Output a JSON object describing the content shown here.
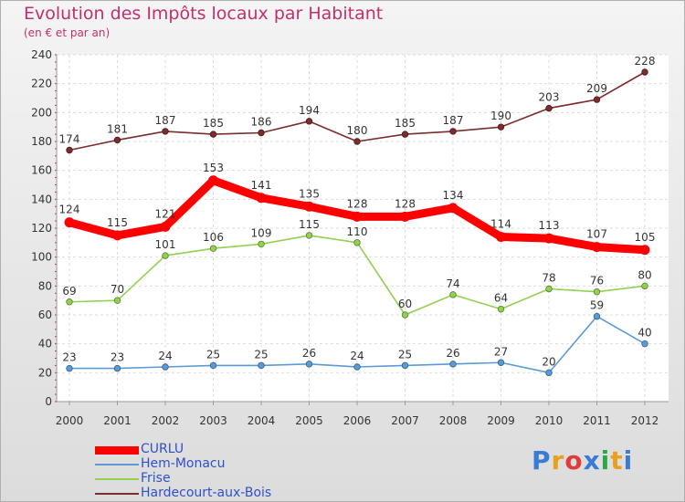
{
  "header": {
    "title": "Evolution des Impôts locaux par Habitant",
    "subtitle": "(en € et par an)"
  },
  "logo": {
    "text": "Proxiti",
    "letter_colors": [
      "#3a7bd5",
      "#e8a020",
      "#e03c3c",
      "#3a7bd5",
      "#2aa84a",
      "#e8a020",
      "#3a7bd5"
    ]
  },
  "chart_data": {
    "type": "line",
    "x": [
      "2000",
      "2001",
      "2002",
      "2003",
      "2004",
      "2005",
      "2006",
      "2007",
      "2008",
      "2009",
      "2010",
      "2011",
      "2012"
    ],
    "ylim": [
      0,
      240
    ],
    "yticks": [
      0,
      20,
      40,
      60,
      80,
      100,
      120,
      140,
      160,
      180,
      200,
      220,
      240
    ],
    "grid": true,
    "legend_position": "bottom-left",
    "series": [
      {
        "name": "CURLU",
        "color": "#ff0000",
        "emphasis": true,
        "values": [
          124,
          115,
          121,
          153,
          141,
          135,
          128,
          128,
          134,
          114,
          113,
          107,
          105
        ]
      },
      {
        "name": "Hem-Monacu",
        "color": "#5b9bd5",
        "emphasis": false,
        "values": [
          23,
          23,
          24,
          25,
          25,
          26,
          24,
          25,
          26,
          27,
          20,
          59,
          40
        ]
      },
      {
        "name": "Frise",
        "color": "#92d050",
        "emphasis": false,
        "values": [
          69,
          70,
          101,
          106,
          109,
          115,
          110,
          60,
          74,
          64,
          78,
          76,
          80
        ]
      },
      {
        "name": "Hardecourt-aux-Bois",
        "color": "#7b2c2c",
        "emphasis": false,
        "values": [
          174,
          181,
          187,
          185,
          186,
          194,
          180,
          185,
          187,
          190,
          203,
          209,
          228
        ]
      }
    ]
  }
}
